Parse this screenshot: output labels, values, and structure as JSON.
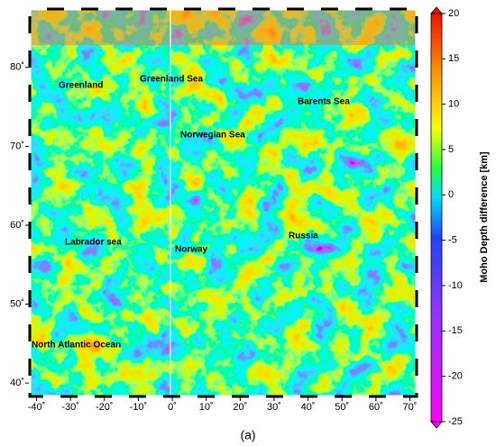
{
  "map": {
    "xlim": [
      -42,
      72
    ],
    "ylim": [
      38.3,
      87.4
    ],
    "xticks": [
      {
        "value": -40,
        "label": "-40˚"
      },
      {
        "value": -30,
        "label": "-30˚"
      },
      {
        "value": -20,
        "label": "-20˚"
      },
      {
        "value": -10,
        "label": "-10˚"
      },
      {
        "value": 0,
        "label": "0˚"
      },
      {
        "value": 10,
        "label": "10˚"
      },
      {
        "value": 20,
        "label": "20˚"
      },
      {
        "value": 30,
        "label": "30˚"
      },
      {
        "value": 40,
        "label": "40˚"
      },
      {
        "value": 50,
        "label": "50˚"
      },
      {
        "value": 60,
        "label": "60˚"
      },
      {
        "value": 70,
        "label": "70˚"
      }
    ],
    "yticks": [
      {
        "value": 40,
        "label": "40˚"
      },
      {
        "value": 50,
        "label": "50˚"
      },
      {
        "value": 60,
        "label": "60˚"
      },
      {
        "value": 70,
        "label": "70˚"
      },
      {
        "value": 80,
        "label": "80˚"
      }
    ],
    "labels": [
      "Greenland",
      "Greenland Sea",
      "Barents Sea",
      "Norwegian Sea",
      "Labrador sea",
      "Norway",
      "Russia",
      "North Atlantic Ocean"
    ],
    "colorbar": {
      "label": "Moho Depth difference [km]",
      "lim": [
        -25,
        20
      ],
      "ticks": [
        20,
        15,
        10,
        5,
        0,
        -5,
        -10,
        -15,
        -20,
        -25
      ]
    },
    "caption": "(a)"
  }
}
